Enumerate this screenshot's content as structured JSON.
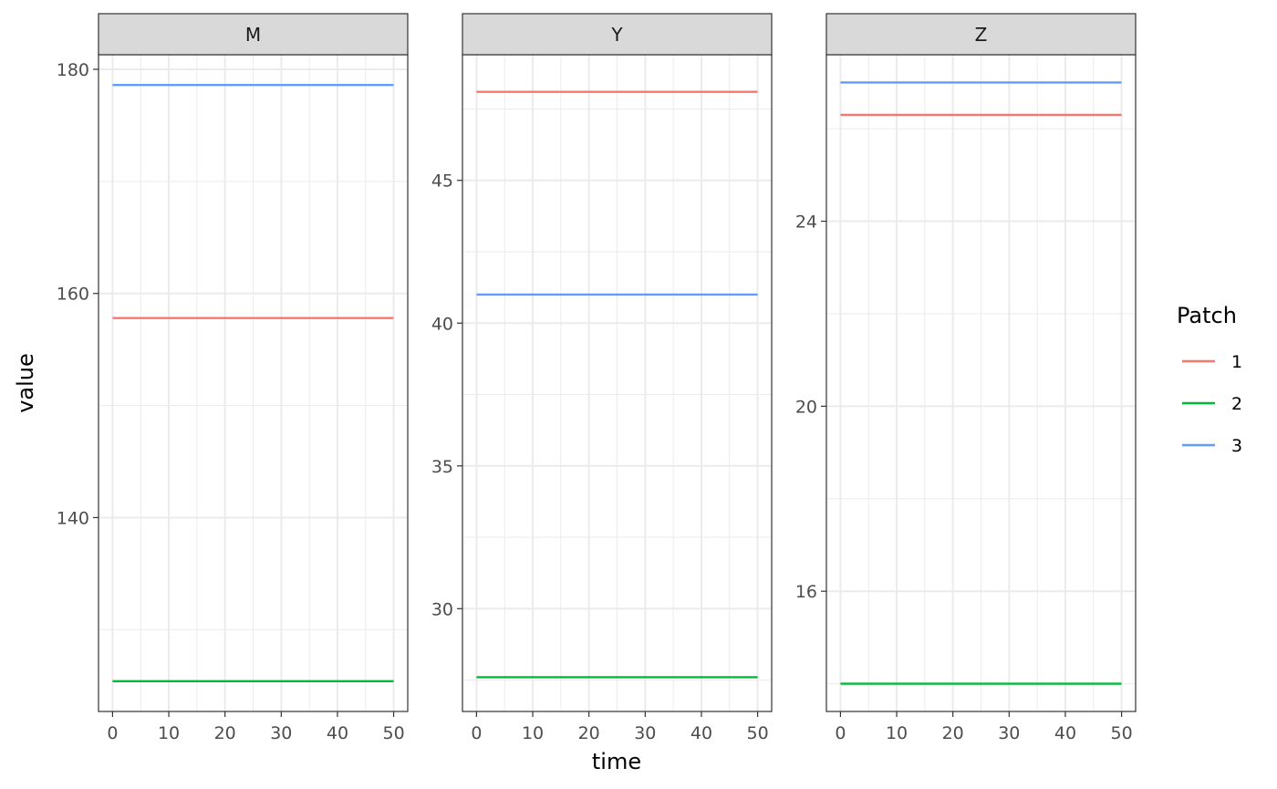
{
  "chart_data": {
    "type": "line",
    "xlabel": "time",
    "ylabel": "value",
    "legend": {
      "title": "Patch",
      "position": "right",
      "entries": [
        {
          "label": "1",
          "color": "#F8766D"
        },
        {
          "label": "2",
          "color": "#00BA38"
        },
        {
          "label": "3",
          "color": "#619CFF"
        }
      ]
    },
    "grid": true,
    "x": [
      0,
      50
    ],
    "x_ticks": [
      0,
      10,
      20,
      30,
      40,
      50
    ],
    "xlim": [
      -2.5,
      52.5
    ],
    "facets": [
      {
        "label": "M",
        "ylim": [
          122.7,
          181.3
        ],
        "y_ticks": [
          140,
          160,
          180
        ],
        "series": [
          {
            "name": "1",
            "values": [
              157.8,
              157.8
            ]
          },
          {
            "name": "2",
            "values": [
              125.4,
              125.4
            ]
          },
          {
            "name": "3",
            "values": [
              178.6,
              178.6
            ]
          }
        ]
      },
      {
        "label": "Y",
        "ylim": [
          26.4,
          49.4
        ],
        "y_ticks": [
          30,
          35,
          40,
          45
        ],
        "series": [
          {
            "name": "1",
            "values": [
              48.1,
              48.1
            ]
          },
          {
            "name": "2",
            "values": [
              27.6,
              27.6
            ]
          },
          {
            "name": "3",
            "values": [
              41.0,
              41.0
            ]
          }
        ]
      },
      {
        "label": "Z",
        "ylim": [
          13.4,
          27.6
        ],
        "y_ticks": [
          16,
          20,
          24
        ],
        "series": [
          {
            "name": "1",
            "values": [
              26.3,
              26.3
            ]
          },
          {
            "name": "2",
            "values": [
              14.0,
              14.0
            ]
          },
          {
            "name": "3",
            "values": [
              27.0,
              27.0
            ]
          }
        ]
      }
    ]
  }
}
